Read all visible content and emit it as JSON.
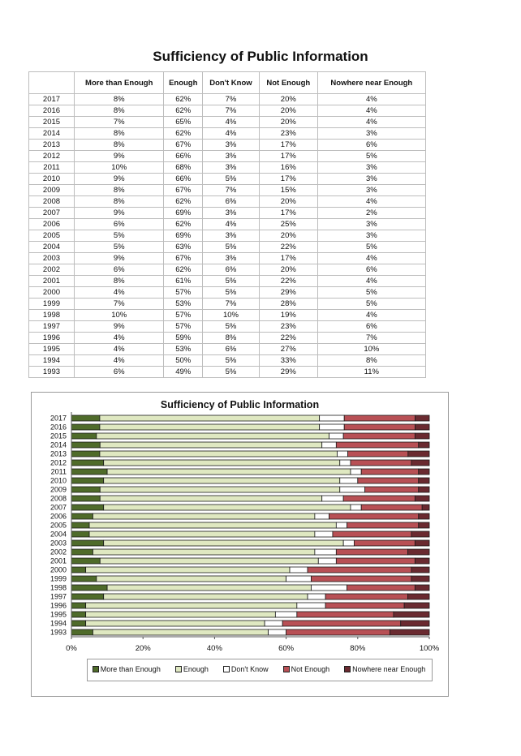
{
  "page_title": "Sufficiency of Public Information",
  "table": {
    "headers": [
      "",
      "More than Enough",
      "Enough",
      "Don't Know",
      "Not Enough",
      "Nowhere near Enough"
    ],
    "rows": [
      [
        "2017",
        "8%",
        "62%",
        "7%",
        "20%",
        "4%"
      ],
      [
        "2016",
        "8%",
        "62%",
        "7%",
        "20%",
        "4%"
      ],
      [
        "2015",
        "7%",
        "65%",
        "4%",
        "20%",
        "4%"
      ],
      [
        "2014",
        "8%",
        "62%",
        "4%",
        "23%",
        "3%"
      ],
      [
        "2013",
        "8%",
        "67%",
        "3%",
        "17%",
        "6%"
      ],
      [
        "2012",
        "9%",
        "66%",
        "3%",
        "17%",
        "5%"
      ],
      [
        "2011",
        "10%",
        "68%",
        "3%",
        "16%",
        "3%"
      ],
      [
        "2010",
        "9%",
        "66%",
        "5%",
        "17%",
        "3%"
      ],
      [
        "2009",
        "8%",
        "67%",
        "7%",
        "15%",
        "3%"
      ],
      [
        "2008",
        "8%",
        "62%",
        "6%",
        "20%",
        "4%"
      ],
      [
        "2007",
        "9%",
        "69%",
        "3%",
        "17%",
        "2%"
      ],
      [
        "2006",
        "6%",
        "62%",
        "4%",
        "25%",
        "3%"
      ],
      [
        "2005",
        "5%",
        "69%",
        "3%",
        "20%",
        "3%"
      ],
      [
        "2004",
        "5%",
        "63%",
        "5%",
        "22%",
        "5%"
      ],
      [
        "2003",
        "9%",
        "67%",
        "3%",
        "17%",
        "4%"
      ],
      [
        "2002",
        "6%",
        "62%",
        "6%",
        "20%",
        "6%"
      ],
      [
        "2001",
        "8%",
        "61%",
        "5%",
        "22%",
        "4%"
      ],
      [
        "2000",
        "4%",
        "57%",
        "5%",
        "29%",
        "5%"
      ],
      [
        "1999",
        "7%",
        "53%",
        "7%",
        "28%",
        "5%"
      ],
      [
        "1998",
        "10%",
        "57%",
        "10%",
        "19%",
        "4%"
      ],
      [
        "1997",
        "9%",
        "57%",
        "5%",
        "23%",
        "6%"
      ],
      [
        "1996",
        "4%",
        "59%",
        "8%",
        "22%",
        "7%"
      ],
      [
        "1995",
        "4%",
        "53%",
        "6%",
        "27%",
        "10%"
      ],
      [
        "1994",
        "4%",
        "50%",
        "5%",
        "33%",
        "8%"
      ],
      [
        "1993",
        "6%",
        "49%",
        "5%",
        "29%",
        "11%"
      ]
    ]
  },
  "chart_data": {
    "type": "bar",
    "orientation": "horizontal",
    "stacked": "percent",
    "title": "Sufficiency of Public Information",
    "categories": [
      "2017",
      "2016",
      "2015",
      "2014",
      "2013",
      "2012",
      "2011",
      "2010",
      "2009",
      "2008",
      "2007",
      "2006",
      "2005",
      "2004",
      "2003",
      "2002",
      "2001",
      "2000",
      "1999",
      "1998",
      "1997",
      "1996",
      "1995",
      "1994",
      "1993"
    ],
    "series": [
      {
        "name": "More than Enough",
        "color": "#4f6b2a",
        "values": [
          8,
          8,
          7,
          8,
          8,
          9,
          10,
          9,
          8,
          8,
          9,
          6,
          5,
          5,
          9,
          6,
          8,
          4,
          7,
          10,
          9,
          4,
          4,
          4,
          6
        ]
      },
      {
        "name": "Enough",
        "color": "#dfe8c1",
        "values": [
          62,
          62,
          65,
          62,
          67,
          66,
          68,
          66,
          67,
          62,
          69,
          62,
          69,
          63,
          67,
          62,
          61,
          57,
          53,
          57,
          57,
          59,
          53,
          50,
          49
        ]
      },
      {
        "name": "Don't Know",
        "color": "#ffffff",
        "values": [
          7,
          7,
          4,
          4,
          3,
          3,
          3,
          5,
          7,
          6,
          3,
          4,
          3,
          5,
          3,
          6,
          5,
          5,
          7,
          10,
          5,
          8,
          6,
          5,
          5
        ]
      },
      {
        "name": "Not Enough",
        "color": "#b85055",
        "values": [
          20,
          20,
          20,
          23,
          17,
          17,
          16,
          17,
          15,
          20,
          17,
          25,
          20,
          22,
          17,
          20,
          22,
          29,
          28,
          19,
          23,
          22,
          27,
          33,
          29
        ]
      },
      {
        "name": "Nowhere near Enough",
        "color": "#6a2a30",
        "values": [
          4,
          4,
          4,
          3,
          6,
          5,
          3,
          3,
          3,
          4,
          2,
          3,
          3,
          5,
          4,
          6,
          4,
          5,
          5,
          4,
          6,
          7,
          10,
          8,
          11
        ]
      }
    ],
    "x_ticks": [
      "0%",
      "20%",
      "40%",
      "60%",
      "80%",
      "100%"
    ],
    "xlim": [
      0,
      100
    ],
    "legend": "bottom",
    "grid": false
  }
}
